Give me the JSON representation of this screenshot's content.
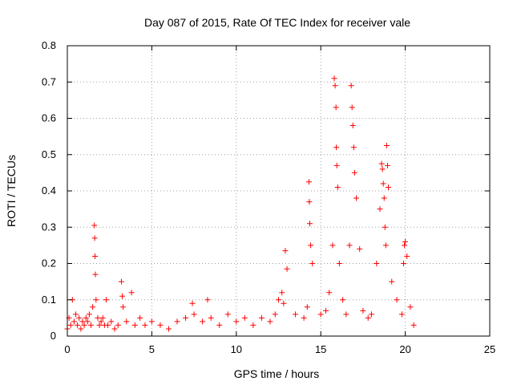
{
  "chart_data": {
    "type": "scatter",
    "title": "Day 087 of 2015, Rate Of TEC Index for receiver vale",
    "xlabel": "GPS time / hours",
    "ylabel": "ROTI / TECUs",
    "xlim": [
      0,
      25
    ],
    "ylim": [
      0,
      0.8
    ],
    "x_ticks": [
      "0",
      "5",
      "10",
      "15",
      "20",
      "25"
    ],
    "y_ticks": [
      "0",
      "0.1",
      "0.2",
      "0.3",
      "0.4",
      "0.5",
      "0.6",
      "0.7",
      "0.8"
    ],
    "grid": true,
    "marker": "+",
    "color": "#ff0000",
    "series": [
      {
        "x": [
          0.0,
          0.1,
          0.2,
          0.3,
          0.4,
          0.5,
          0.6,
          0.7,
          0.8,
          0.9,
          1.0,
          1.1,
          1.2,
          1.3,
          1.4,
          1.5,
          1.6,
          1.62,
          1.64,
          1.66,
          1.7,
          1.8,
          1.9,
          2.0,
          2.1,
          2.2,
          2.3,
          2.4,
          2.6,
          2.8,
          3.0,
          3.2,
          3.25,
          3.3,
          3.5,
          3.8,
          4.0,
          4.3,
          4.6,
          5.0,
          5.5,
          6.0,
          6.5,
          7.0,
          7.4,
          7.5,
          8.0,
          8.3,
          8.5,
          9.0,
          9.5,
          10.0,
          10.5,
          11.0,
          11.5,
          12.0,
          12.3,
          12.5,
          12.7,
          12.8,
          12.9,
          13.0,
          13.5,
          14.0,
          14.2,
          14.3,
          14.32,
          14.35,
          14.4,
          14.5,
          15.0,
          15.3,
          15.5,
          15.7,
          15.8,
          15.85,
          15.9,
          15.92,
          15.95,
          16.0,
          16.1,
          16.3,
          16.5,
          16.7,
          16.8,
          16.85,
          16.9,
          16.95,
          17.0,
          17.1,
          17.3,
          17.5,
          17.8,
          18.0,
          18.3,
          18.5,
          18.6,
          18.65,
          18.7,
          18.75,
          18.8,
          18.85,
          18.9,
          18.95,
          19.0,
          19.2,
          19.5,
          19.8,
          19.9,
          19.95,
          20.0,
          20.1,
          20.3,
          20.5
        ],
        "y": [
          0.02,
          0.05,
          0.03,
          0.1,
          0.04,
          0.06,
          0.03,
          0.05,
          0.02,
          0.04,
          0.03,
          0.05,
          0.04,
          0.06,
          0.03,
          0.08,
          0.305,
          0.27,
          0.22,
          0.17,
          0.1,
          0.05,
          0.03,
          0.04,
          0.05,
          0.03,
          0.1,
          0.03,
          0.04,
          0.02,
          0.03,
          0.15,
          0.11,
          0.08,
          0.04,
          0.12,
          0.03,
          0.05,
          0.03,
          0.04,
          0.03,
          0.02,
          0.04,
          0.05,
          0.09,
          0.06,
          0.04,
          0.1,
          0.05,
          0.03,
          0.06,
          0.04,
          0.05,
          0.03,
          0.05,
          0.04,
          0.06,
          0.1,
          0.12,
          0.09,
          0.235,
          0.185,
          0.06,
          0.05,
          0.08,
          0.425,
          0.37,
          0.31,
          0.25,
          0.2,
          0.06,
          0.07,
          0.12,
          0.25,
          0.71,
          0.69,
          0.63,
          0.52,
          0.47,
          0.41,
          0.2,
          0.1,
          0.06,
          0.25,
          0.69,
          0.63,
          0.58,
          0.52,
          0.45,
          0.38,
          0.24,
          0.07,
          0.05,
          0.06,
          0.2,
          0.35,
          0.475,
          0.46,
          0.42,
          0.38,
          0.3,
          0.25,
          0.525,
          0.47,
          0.41,
          0.15,
          0.1,
          0.06,
          0.2,
          0.25,
          0.26,
          0.22,
          0.08,
          0.03
        ]
      }
    ]
  }
}
